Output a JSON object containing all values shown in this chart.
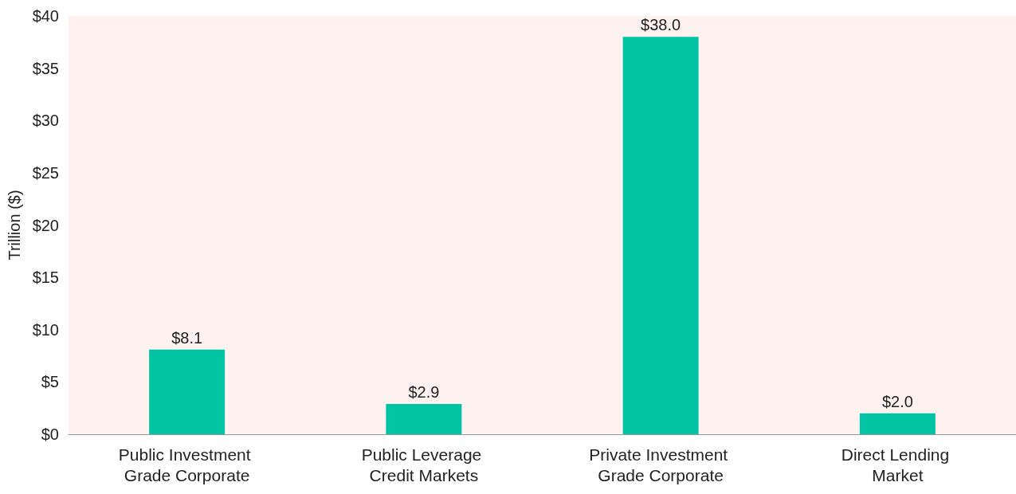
{
  "chart_data": {
    "type": "bar",
    "ylabel": "Trillion ($)",
    "categories": [
      "Public Investment Grade Corporate",
      "Public Leverage Credit Markets",
      "Private Investment Grade Corporate",
      "Direct Lending Market"
    ],
    "values": [
      8.1,
      2.9,
      38.0,
      2.0
    ],
    "value_labels": [
      "$8.1",
      "$2.9",
      "$38.0",
      "$2.0"
    ],
    "color": "#00c4a3",
    "ylim": [
      0,
      40
    ],
    "yticks": [
      {
        "value": 0,
        "label": "$0"
      },
      {
        "value": 5,
        "label": "$5"
      },
      {
        "value": 10,
        "label": "$10"
      },
      {
        "value": 15,
        "label": "$15"
      },
      {
        "value": 20,
        "label": "$20"
      },
      {
        "value": 25,
        "label": "$25"
      },
      {
        "value": 30,
        "label": "$30"
      },
      {
        "value": 35,
        "label": "$35"
      },
      {
        "value": 40,
        "label": "$40"
      }
    ],
    "grid": false
  }
}
